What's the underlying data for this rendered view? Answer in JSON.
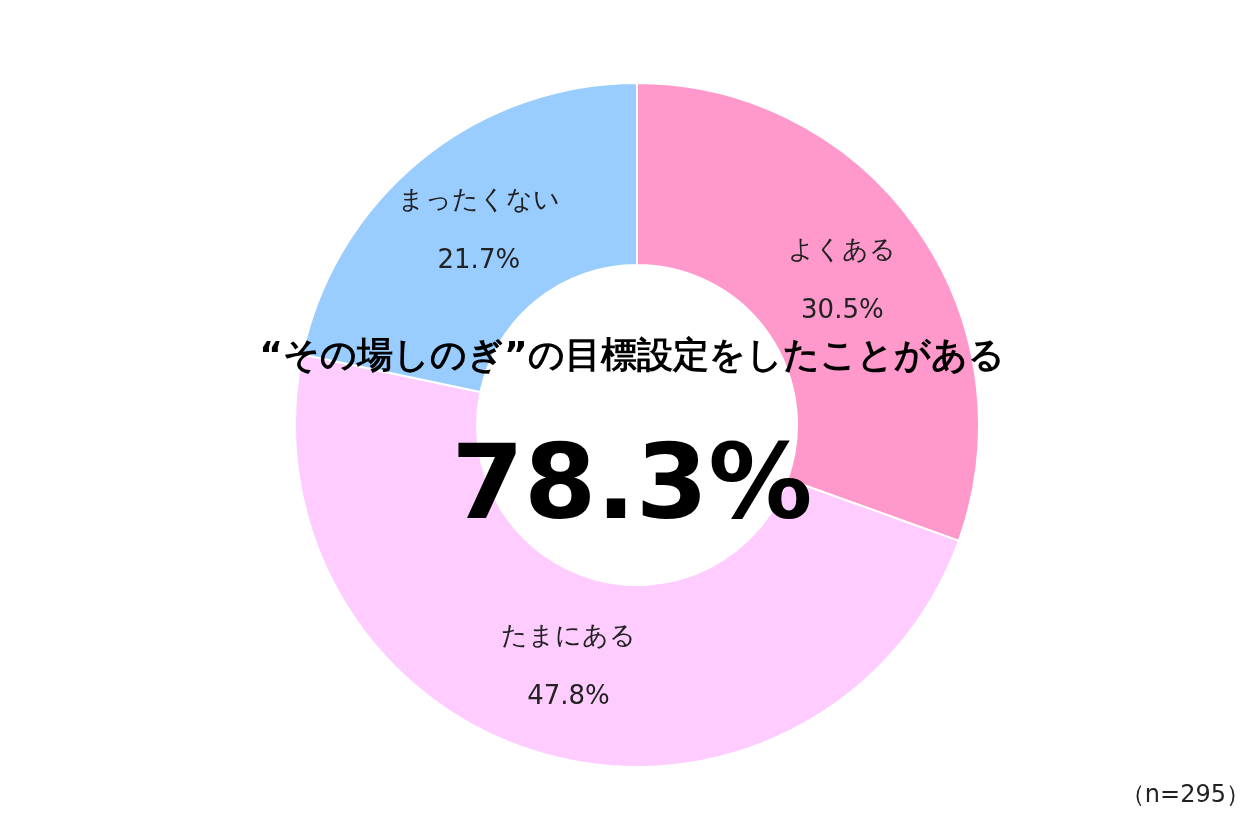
{
  "chart_data": {
    "type": "donut",
    "title": "“その場しのぎ”の目標設定をしたことがある",
    "categories": [
      "よくある",
      "たまにある",
      "まったくない"
    ],
    "values": [
      30.5,
      47.8,
      21.7
    ],
    "colors": [
      "#ff99cc",
      "#ffccff",
      "#99ccff"
    ],
    "value_labels": [
      "30.5%",
      "47.8%",
      "21.7%"
    ],
    "annotations": [
      "78.3%",
      "（n=295）"
    ]
  }
}
